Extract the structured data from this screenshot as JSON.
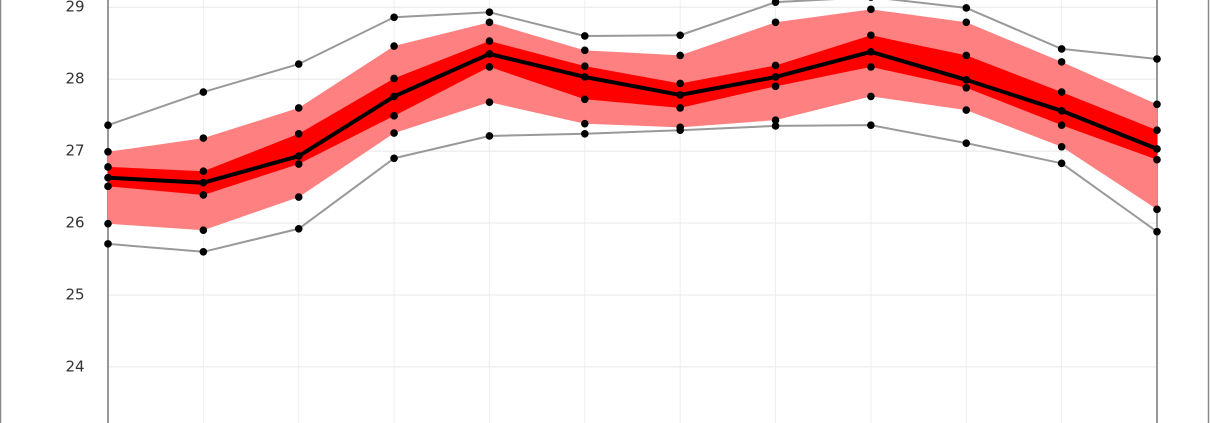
{
  "chart_data": {
    "type": "line",
    "categories": [
      null,
      null,
      null,
      null,
      null,
      null,
      null,
      null,
      null,
      null,
      null,
      null
    ],
    "ylim": [
      23.22,
      29.1
    ],
    "yticks": [
      24,
      25,
      26,
      27,
      28,
      29
    ],
    "grid": true,
    "bands": [
      {
        "color": "#ff8080",
        "upper": [
          26.99,
          27.18,
          27.6,
          28.46,
          28.79,
          28.4,
          28.33,
          28.79,
          28.97,
          28.79,
          28.24,
          27.65
        ],
        "lower": [
          25.99,
          25.9,
          26.36,
          27.25,
          27.68,
          27.38,
          27.33,
          27.43,
          27.76,
          27.57,
          27.06,
          26.19
        ]
      },
      {
        "color": "#ff0000",
        "upper": [
          26.78,
          26.72,
          27.24,
          28.01,
          28.53,
          28.18,
          27.94,
          28.19,
          28.61,
          28.33,
          27.82,
          27.29
        ],
        "lower": [
          26.51,
          26.39,
          26.82,
          27.49,
          28.17,
          27.72,
          27.6,
          27.9,
          28.17,
          27.88,
          27.36,
          26.88
        ]
      }
    ],
    "series": [
      {
        "color": "#999999",
        "values": [
          27.36,
          27.82,
          28.21,
          28.86,
          28.93,
          28.6,
          28.61,
          29.07,
          29.14,
          28.99,
          28.42,
          28.28
        ]
      },
      {
        "color": "#999999",
        "values": [
          25.71,
          25.6,
          25.92,
          26.9,
          27.21,
          27.24,
          27.29,
          27.35,
          27.36,
          27.11,
          26.83,
          25.88
        ]
      },
      {
        "color": "#000000",
        "values": [
          26.63,
          26.56,
          26.93,
          27.76,
          28.35,
          28.03,
          27.78,
          28.03,
          28.38,
          27.99,
          27.56,
          27.03
        ]
      }
    ],
    "marker_color": "#000000"
  }
}
